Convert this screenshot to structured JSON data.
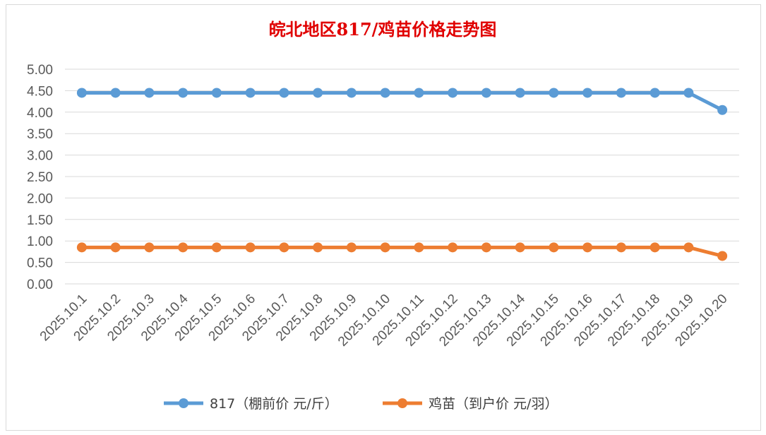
{
  "chart_data": {
    "type": "line",
    "title": "皖北地区817/鸡苗价格走势图",
    "categories": [
      "2025.10.1",
      "2025.10.2",
      "2025.10.3",
      "2025.10.4",
      "2025.10.5",
      "2025.10.6",
      "2025.10.7",
      "2025.10.8",
      "2025.10.9",
      "2025.10.10",
      "2025.10.11",
      "2025.10.12",
      "2025.10.13",
      "2025.10.14",
      "2025.10.15",
      "2025.10.16",
      "2025.10.17",
      "2025.10.18",
      "2025.10.19",
      "2025.10.20"
    ],
    "yticks": [
      "0.00",
      "0.50",
      "1.00",
      "1.50",
      "2.00",
      "2.50",
      "3.00",
      "3.50",
      "4.00",
      "4.50",
      "5.00"
    ],
    "ylim": [
      0,
      5
    ],
    "grid": true,
    "legend_position": "bottom",
    "series": [
      {
        "name": "817（棚前价 元/斤）",
        "color": "#5b9bd5",
        "values": [
          4.45,
          4.45,
          4.45,
          4.45,
          4.45,
          4.45,
          4.45,
          4.45,
          4.45,
          4.45,
          4.45,
          4.45,
          4.45,
          4.45,
          4.45,
          4.45,
          4.45,
          4.45,
          4.45,
          4.05
        ]
      },
      {
        "name": "鸡苗（到户价 元/羽）",
        "color": "#ed7d31",
        "values": [
          0.85,
          0.85,
          0.85,
          0.85,
          0.85,
          0.85,
          0.85,
          0.85,
          0.85,
          0.85,
          0.85,
          0.85,
          0.85,
          0.85,
          0.85,
          0.85,
          0.85,
          0.85,
          0.85,
          0.65
        ]
      }
    ]
  }
}
